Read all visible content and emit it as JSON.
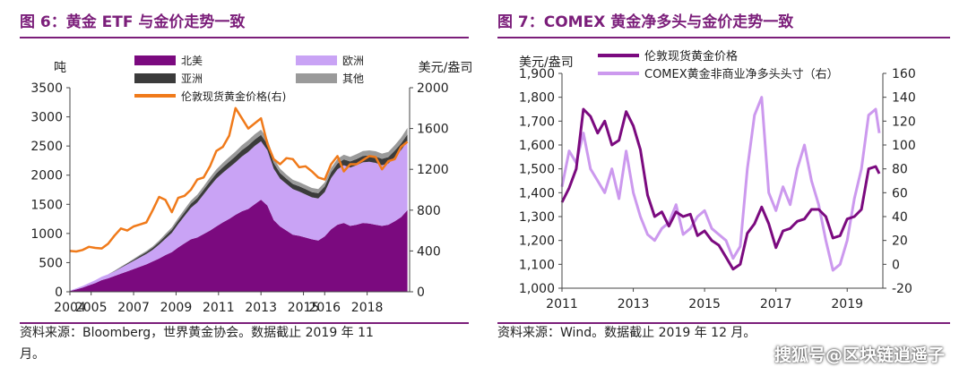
{
  "left": {
    "title": "图 6：黄金 ETF 与金价走势一致",
    "source_line1": "资料来源：Bloomberg，世界黄金协会。数据截止 2019 年 11",
    "source_line2": "月。"
  },
  "right": {
    "title": "图 7：COMEX 黄金净多头与金价走势一致",
    "source_line1": "资料来源：Wind。数据截止 2019 年 12 月。"
  },
  "watermark": "搜狐号@区块链逍遥子",
  "colors": {
    "title": "#7b1e7a",
    "north_america": "#7b0a7f",
    "europe": "#c9a3f5",
    "asia": "#3b3b3b",
    "other": "#9a9a9a",
    "gold_orange": "#f07a1a",
    "gold_dark": "#7b0a7f",
    "comex_light": "#cc99ee"
  },
  "chart_data": [
    {
      "type": "area",
      "ylabel": "吨",
      "y2label": "美元/盎司",
      "ylim": [
        0,
        3500
      ],
      "y2lim": [
        0,
        2000
      ],
      "yticks": [
        0,
        500,
        1000,
        1500,
        2000,
        2500,
        3000,
        3500
      ],
      "y2ticks": [
        0,
        400,
        800,
        1200,
        1600,
        2000
      ],
      "xlim": [
        2004,
        2020
      ],
      "xticks": [
        2004,
        2005,
        2007,
        2009,
        2011,
        2013,
        2015,
        2016,
        2018
      ],
      "xticklabels": [
        "2004",
        "2005",
        "2007",
        "2009",
        "2011",
        "2013",
        "2015",
        "2016",
        "2018"
      ],
      "grid": false,
      "legend": "top",
      "series": [
        {
          "name": "北美",
          "kind": "stack",
          "color": "#7b0a7f",
          "x": [
            2004.0,
            2004.3,
            2004.6,
            2004.9,
            2005.2,
            2005.5,
            2005.8,
            2006.1,
            2006.4,
            2006.7,
            2007.0,
            2007.3,
            2007.6,
            2007.9,
            2008.2,
            2008.5,
            2008.8,
            2009.1,
            2009.4,
            2009.7,
            2010.0,
            2010.3,
            2010.6,
            2010.9,
            2011.2,
            2011.5,
            2011.8,
            2012.1,
            2012.4,
            2012.7,
            2013.0,
            2013.3,
            2013.6,
            2013.9,
            2014.2,
            2014.5,
            2014.8,
            2015.1,
            2015.4,
            2015.7,
            2016.0,
            2016.3,
            2016.6,
            2016.9,
            2017.2,
            2017.5,
            2017.8,
            2018.1,
            2018.4,
            2018.7,
            2019.0,
            2019.3,
            2019.6,
            2019.9
          ],
          "values": [
            10,
            40,
            70,
            110,
            150,
            200,
            230,
            270,
            310,
            350,
            390,
            430,
            470,
            520,
            570,
            630,
            680,
            760,
            830,
            900,
            930,
            990,
            1050,
            1120,
            1190,
            1250,
            1320,
            1380,
            1420,
            1500,
            1580,
            1480,
            1230,
            1120,
            1050,
            980,
            960,
            930,
            900,
            880,
            950,
            1070,
            1150,
            1180,
            1130,
            1150,
            1180,
            1170,
            1150,
            1130,
            1150,
            1210,
            1280,
            1400
          ]
        },
        {
          "name": "欧洲",
          "kind": "stack",
          "color": "#c9a3f5",
          "x": [
            2004.0,
            2004.3,
            2004.6,
            2004.9,
            2005.2,
            2005.5,
            2005.8,
            2006.1,
            2006.4,
            2006.7,
            2007.0,
            2007.3,
            2007.6,
            2007.9,
            2008.2,
            2008.5,
            2008.8,
            2009.1,
            2009.4,
            2009.7,
            2010.0,
            2010.3,
            2010.6,
            2010.9,
            2011.2,
            2011.5,
            2011.8,
            2012.1,
            2012.4,
            2012.7,
            2013.0,
            2013.3,
            2013.6,
            2013.9,
            2014.2,
            2014.5,
            2014.8,
            2015.1,
            2015.4,
            2015.7,
            2016.0,
            2016.3,
            2016.6,
            2016.9,
            2017.2,
            2017.5,
            2017.8,
            2018.1,
            2018.4,
            2018.7,
            2019.0,
            2019.3,
            2019.6,
            2019.9
          ],
          "values": [
            10,
            20,
            30,
            40,
            50,
            60,
            70,
            80,
            100,
            120,
            140,
            160,
            180,
            200,
            240,
            280,
            330,
            400,
            470,
            540,
            600,
            680,
            760,
            820,
            850,
            880,
            900,
            940,
            980,
            1000,
            1000,
            950,
            880,
            820,
            800,
            780,
            760,
            740,
            720,
            720,
            760,
            880,
            950,
            990,
            1000,
            1020,
            1040,
            1060,
            1060,
            1040,
            1050,
            1100,
            1150,
            1180
          ]
        },
        {
          "name": "亚洲",
          "kind": "stack",
          "color": "#3b3b3b",
          "x": [
            2004.0,
            2004.3,
            2004.6,
            2004.9,
            2005.2,
            2005.5,
            2005.8,
            2006.1,
            2006.4,
            2006.7,
            2007.0,
            2007.3,
            2007.6,
            2007.9,
            2008.2,
            2008.5,
            2008.8,
            2009.1,
            2009.4,
            2009.7,
            2010.0,
            2010.3,
            2010.6,
            2010.9,
            2011.2,
            2011.5,
            2011.8,
            2012.1,
            2012.4,
            2012.7,
            2013.0,
            2013.3,
            2013.6,
            2013.9,
            2014.2,
            2014.5,
            2014.8,
            2015.1,
            2015.4,
            2015.7,
            2016.0,
            2016.3,
            2016.6,
            2016.9,
            2017.2,
            2017.5,
            2017.8,
            2018.1,
            2018.4,
            2018.7,
            2019.0,
            2019.3,
            2019.6,
            2019.9
          ],
          "values": [
            0,
            0,
            0,
            0,
            0,
            0,
            0,
            5,
            10,
            15,
            20,
            25,
            30,
            35,
            40,
            50,
            55,
            60,
            65,
            70,
            75,
            80,
            85,
            90,
            95,
            100,
            105,
            110,
            110,
            110,
            110,
            105,
            100,
            95,
            90,
            90,
            90,
            90,
            90,
            90,
            95,
            100,
            100,
            100,
            105,
            105,
            110,
            110,
            110,
            110,
            110,
            110,
            115,
            120
          ]
        },
        {
          "name": "其他",
          "kind": "stack",
          "color": "#9a9a9a",
          "x": [
            2004.0,
            2004.3,
            2004.6,
            2004.9,
            2005.2,
            2005.5,
            2005.8,
            2006.1,
            2006.4,
            2006.7,
            2007.0,
            2007.3,
            2007.6,
            2007.9,
            2008.2,
            2008.5,
            2008.8,
            2009.1,
            2009.4,
            2009.7,
            2010.0,
            2010.3,
            2010.6,
            2010.9,
            2011.2,
            2011.5,
            2011.8,
            2012.1,
            2012.4,
            2012.7,
            2013.0,
            2013.3,
            2013.6,
            2013.9,
            2014.2,
            2014.5,
            2014.8,
            2015.1,
            2015.4,
            2015.7,
            2016.0,
            2016.3,
            2016.6,
            2016.9,
            2017.2,
            2017.5,
            2017.8,
            2018.1,
            2018.4,
            2018.7,
            2019.0,
            2019.3,
            2019.6,
            2019.9
          ],
          "values": [
            0,
            0,
            0,
            0,
            0,
            0,
            0,
            5,
            10,
            10,
            15,
            20,
            20,
            25,
            30,
            35,
            40,
            45,
            50,
            55,
            60,
            60,
            65,
            70,
            75,
            80,
            80,
            85,
            90,
            90,
            90,
            85,
            80,
            75,
            70,
            70,
            70,
            70,
            70,
            70,
            70,
            75,
            80,
            80,
            80,
            85,
            85,
            85,
            90,
            90,
            90,
            95,
            100,
            110
          ]
        },
        {
          "name": "伦敦现货黄金价格(右)",
          "kind": "line",
          "axis": "right",
          "color": "#f07a1a",
          "x": [
            2004.0,
            2004.3,
            2004.6,
            2004.9,
            2005.2,
            2005.5,
            2005.8,
            2006.1,
            2006.4,
            2006.7,
            2007.0,
            2007.3,
            2007.6,
            2007.9,
            2008.2,
            2008.5,
            2008.8,
            2009.1,
            2009.4,
            2009.7,
            2010.0,
            2010.3,
            2010.6,
            2010.9,
            2011.2,
            2011.5,
            2011.8,
            2012.1,
            2012.4,
            2012.7,
            2013.0,
            2013.3,
            2013.6,
            2013.9,
            2014.2,
            2014.5,
            2014.8,
            2015.1,
            2015.4,
            2015.7,
            2016.0,
            2016.3,
            2016.6,
            2016.9,
            2017.2,
            2017.5,
            2017.8,
            2018.1,
            2018.4,
            2018.7,
            2019.0,
            2019.3,
            2019.6,
            2019.9
          ],
          "values": [
            400,
            395,
            410,
            440,
            430,
            425,
            470,
            550,
            620,
            600,
            640,
            660,
            680,
            800,
            930,
            900,
            780,
            920,
            940,
            1000,
            1100,
            1120,
            1230,
            1380,
            1420,
            1530,
            1800,
            1700,
            1600,
            1650,
            1700,
            1450,
            1300,
            1250,
            1310,
            1300,
            1220,
            1230,
            1180,
            1120,
            1100,
            1250,
            1330,
            1180,
            1250,
            1250,
            1290,
            1330,
            1320,
            1200,
            1280,
            1300,
            1420,
            1470
          ]
        }
      ]
    },
    {
      "type": "line",
      "ylabel": "美元/盎司",
      "ylim": [
        1000,
        1900
      ],
      "y2lim": [
        -20,
        160
      ],
      "yticks": [
        1000,
        1100,
        1200,
        1300,
        1400,
        1500,
        1600,
        1700,
        1800,
        1900
      ],
      "yticklabels": [
        "1,000",
        "1,100",
        "1,200",
        "1,300",
        "1,400",
        "1,500",
        "1,600",
        "1,700",
        "1,800",
        "1,900"
      ],
      "y2ticks": [
        -20,
        0,
        20,
        40,
        60,
        80,
        100,
        120,
        140,
        160
      ],
      "xlim": [
        2011,
        2020
      ],
      "xticks": [
        2011,
        2013,
        2015,
        2017,
        2019
      ],
      "xticklabels": [
        "2011",
        "2013",
        "2015",
        "2017",
        "2019"
      ],
      "grid": false,
      "legend": "top",
      "series": [
        {
          "name": "伦敦现货黄金价格",
          "axis": "left",
          "color": "#7b0a7f",
          "x": [
            2011.0,
            2011.2,
            2011.4,
            2011.6,
            2011.8,
            2012.0,
            2012.2,
            2012.4,
            2012.6,
            2012.8,
            2013.0,
            2013.2,
            2013.4,
            2013.6,
            2013.8,
            2014.0,
            2014.2,
            2014.4,
            2014.6,
            2014.8,
            2015.0,
            2015.2,
            2015.4,
            2015.6,
            2015.8,
            2016.0,
            2016.2,
            2016.4,
            2016.6,
            2016.8,
            2017.0,
            2017.2,
            2017.4,
            2017.6,
            2017.8,
            2018.0,
            2018.2,
            2018.4,
            2018.6,
            2018.8,
            2019.0,
            2019.2,
            2019.4,
            2019.6,
            2019.8,
            2019.9
          ],
          "values": [
            1360,
            1420,
            1500,
            1750,
            1720,
            1650,
            1700,
            1600,
            1620,
            1740,
            1680,
            1580,
            1390,
            1300,
            1320,
            1260,
            1320,
            1300,
            1310,
            1220,
            1240,
            1200,
            1180,
            1130,
            1080,
            1100,
            1230,
            1270,
            1340,
            1270,
            1170,
            1240,
            1250,
            1280,
            1290,
            1330,
            1330,
            1300,
            1210,
            1220,
            1290,
            1300,
            1330,
            1500,
            1510,
            1480
          ]
        },
        {
          "name": "COMEX黄金非商业净多头头寸（右）",
          "axis": "right",
          "color": "#cc99ee",
          "x": [
            2011.0,
            2011.2,
            2011.4,
            2011.6,
            2011.8,
            2012.0,
            2012.2,
            2012.4,
            2012.6,
            2012.8,
            2013.0,
            2013.2,
            2013.4,
            2013.6,
            2013.8,
            2014.0,
            2014.2,
            2014.4,
            2014.6,
            2014.8,
            2015.0,
            2015.2,
            2015.4,
            2015.6,
            2015.8,
            2016.0,
            2016.2,
            2016.4,
            2016.6,
            2016.8,
            2017.0,
            2017.2,
            2017.4,
            2017.6,
            2017.8,
            2018.0,
            2018.2,
            2018.4,
            2018.6,
            2018.8,
            2019.0,
            2019.2,
            2019.4,
            2019.6,
            2019.8,
            2019.9
          ],
          "values": [
            65,
            95,
            85,
            110,
            80,
            70,
            60,
            80,
            55,
            95,
            60,
            40,
            25,
            20,
            30,
            35,
            50,
            25,
            30,
            40,
            45,
            30,
            25,
            20,
            5,
            15,
            80,
            125,
            140,
            60,
            45,
            65,
            50,
            80,
            100,
            70,
            50,
            20,
            -5,
            0,
            20,
            55,
            80,
            125,
            130,
            110
          ]
        }
      ]
    }
  ]
}
